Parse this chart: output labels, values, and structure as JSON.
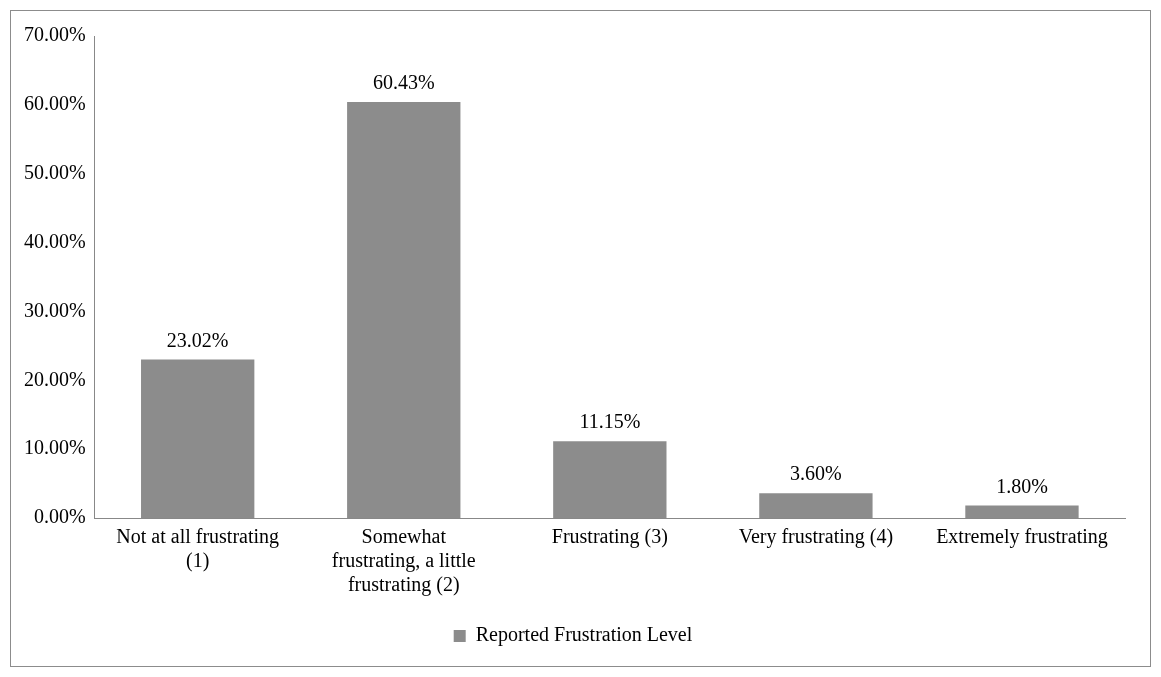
{
  "chart_data": {
    "type": "bar",
    "categories": [
      "Not at all frustrating (1)",
      "Somewhat frustrating, a little frustrating (2)",
      "Frustrating (3)",
      "Very frustrating (4)",
      "Extremely frustrating"
    ],
    "series": [
      {
        "name": "Reported Frustration Level",
        "color": "#8c8c8c",
        "values": [
          23.02,
          60.43,
          11.15,
          3.6,
          1.8
        ],
        "value_labels": [
          "23.02%",
          "60.43%",
          "11.15%",
          "3.60%",
          "1.80%"
        ]
      }
    ],
    "ylim": [
      0,
      70
    ],
    "yticks": [
      {
        "value": 0,
        "label": "0.00%"
      },
      {
        "value": 10,
        "label": "10.00%"
      },
      {
        "value": 20,
        "label": "20.00%"
      },
      {
        "value": 30,
        "label": "30.00%"
      },
      {
        "value": 40,
        "label": "40.00%"
      },
      {
        "value": 50,
        "label": "50.00%"
      },
      {
        "value": 60,
        "label": "60.00%"
      },
      {
        "value": 70,
        "label": "70.00%"
      }
    ],
    "grid": false,
    "legend": "bottom"
  }
}
